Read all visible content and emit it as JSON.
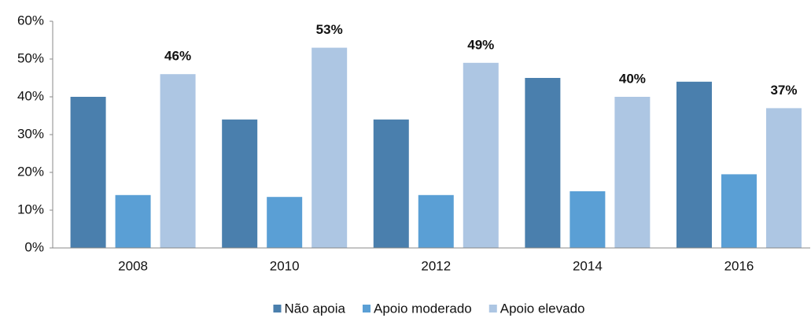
{
  "chart_data": {
    "type": "bar",
    "categories": [
      "2008",
      "2010",
      "2012",
      "2014",
      "2016"
    ],
    "series": [
      {
        "name": "Não apoia",
        "color": "#4a7fad",
        "values": [
          40,
          34,
          34,
          45,
          44
        ]
      },
      {
        "name": "Apoio moderado",
        "color": "#5a9fd5",
        "values": [
          14,
          13.5,
          14,
          15,
          19.5
        ]
      },
      {
        "name": "Apoio elevado",
        "color": "#adc6e3",
        "values": [
          46,
          53,
          49,
          40,
          37
        ],
        "value_labels": [
          "46%",
          "53%",
          "49%",
          "40%",
          "37%"
        ]
      }
    ],
    "ylim": [
      0,
      60
    ],
    "yticks": [
      {
        "value": 0,
        "label": "0%"
      },
      {
        "value": 10,
        "label": "10%"
      },
      {
        "value": 20,
        "label": "20%"
      },
      {
        "value": 30,
        "label": "30%"
      },
      {
        "value": 40,
        "label": "40%"
      },
      {
        "value": 50,
        "label": "50%"
      },
      {
        "value": 60,
        "label": "60%"
      }
    ],
    "legend": "bottom"
  }
}
